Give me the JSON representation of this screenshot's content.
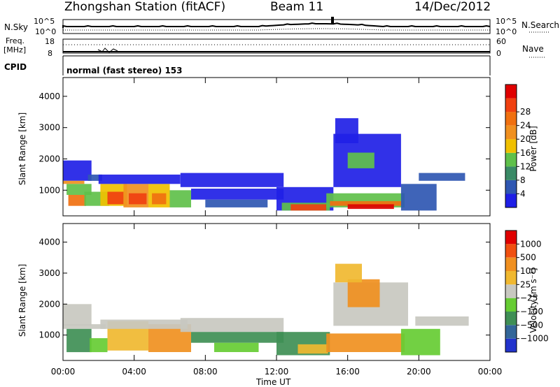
{
  "header": {
    "station": "Zhongshan Station (fitACF)",
    "beam": "Beam 11",
    "date": "14/Dec/2012"
  },
  "strips": {
    "nsky_label": "N.Sky",
    "nsearch_label": "N.Search",
    "noise_ticks_left": [
      "10^5",
      "10^0"
    ],
    "noise_ticks_right": [
      "10^5",
      "10^0"
    ],
    "freq_label": "Freq.",
    "freq_unit": "[MHz]",
    "freq_ticks": [
      "18",
      "8"
    ],
    "nave_label": "Nave",
    "nave_ticks": [
      "60",
      "0"
    ],
    "cpid_label": "CPID",
    "cpid_text": "normal (fast stereo) 153"
  },
  "colors": {
    "power": [
      "#1f1fe6",
      "#2f57b2",
      "#3a8a66",
      "#5fc04a",
      "#f0c000",
      "#f09020",
      "#f07010",
      "#f04010",
      "#e00000"
    ],
    "velocity": [
      "#2233cc",
      "#336699",
      "#3f8f55",
      "#66cc33",
      "#c8c8c0",
      "#f0b830",
      "#f09020",
      "#f05010",
      "#e00000"
    ]
  },
  "chart_data": [
    {
      "type": "heatmap",
      "panel": "power",
      "xlabel": "Time UT",
      "ylabel": "Slant Range [km]",
      "xlim": [
        0,
        24
      ],
      "ylim": [
        180,
        4600
      ],
      "xticks": [
        "00:00",
        "04:00",
        "08:00",
        "12:00",
        "16:00",
        "20:00",
        "00:00"
      ],
      "yticks": [
        1000,
        2000,
        3000,
        4000
      ],
      "colorbar_label": "Power [dB]",
      "colorbar_ticks": [
        "4",
        "8",
        "12",
        "16",
        "20",
        "24",
        "28"
      ],
      "regions": [
        {
          "t": [
            0.0,
            1.6
          ],
          "r": [
            1300,
            1950
          ],
          "level": 0
        },
        {
          "t": [
            1.4,
            2.2
          ],
          "r": [
            1300,
            1500
          ],
          "level": 1
        },
        {
          "t": [
            0.0,
            1.2
          ],
          "r": [
            1200,
            1300
          ],
          "level": 5
        },
        {
          "t": [
            0.2,
            1.6
          ],
          "r": [
            850,
            1200
          ],
          "level": 3
        },
        {
          "t": [
            0.3,
            1.3
          ],
          "r": [
            500,
            850
          ],
          "level": 6
        },
        {
          "t": [
            1.2,
            2.6
          ],
          "r": [
            500,
            950
          ],
          "level": 3
        },
        {
          "t": [
            2.1,
            3.6
          ],
          "r": [
            500,
            1200
          ],
          "level": 4
        },
        {
          "t": [
            2.5,
            3.4
          ],
          "r": [
            550,
            950
          ],
          "level": 7
        },
        {
          "t": [
            3.4,
            4.8
          ],
          "r": [
            450,
            1200
          ],
          "level": 5
        },
        {
          "t": [
            3.7,
            4.7
          ],
          "r": [
            550,
            900
          ],
          "level": 7
        },
        {
          "t": [
            4.8,
            6.0
          ],
          "r": [
            450,
            1200
          ],
          "level": 4
        },
        {
          "t": [
            5.0,
            5.8
          ],
          "r": [
            550,
            900
          ],
          "level": 6
        },
        {
          "t": [
            6.0,
            7.2
          ],
          "r": [
            450,
            1000
          ],
          "level": 3
        },
        {
          "t": [
            2.0,
            6.6
          ],
          "r": [
            1200,
            1500
          ],
          "level": 0
        },
        {
          "t": [
            6.6,
            12.4
          ],
          "r": [
            1100,
            1550
          ],
          "level": 0
        },
        {
          "t": [
            7.2,
            12.4
          ],
          "r": [
            700,
            1050
          ],
          "level": 0
        },
        {
          "t": [
            8.0,
            11.5
          ],
          "r": [
            450,
            700
          ],
          "level": 1
        },
        {
          "t": [
            12.0,
            15.2
          ],
          "r": [
            350,
            1100
          ],
          "level": 0
        },
        {
          "t": [
            12.3,
            15.0
          ],
          "r": [
            350,
            600
          ],
          "level": 3
        },
        {
          "t": [
            12.8,
            14.8
          ],
          "r": [
            350,
            550
          ],
          "level": 7
        },
        {
          "t": [
            14.8,
            19.2
          ],
          "r": [
            450,
            900
          ],
          "level": 3
        },
        {
          "t": [
            15.0,
            19.0
          ],
          "r": [
            500,
            650
          ],
          "level": 6
        },
        {
          "t": [
            16.0,
            18.6
          ],
          "r": [
            400,
            550
          ],
          "level": 8
        },
        {
          "t": [
            15.2,
            19.0
          ],
          "r": [
            1100,
            2800
          ],
          "level": 0
        },
        {
          "t": [
            15.3,
            16.6
          ],
          "r": [
            2500,
            3300
          ],
          "level": 0
        },
        {
          "t": [
            16.0,
            17.5
          ],
          "r": [
            1700,
            2200
          ],
          "level": 3
        },
        {
          "t": [
            19.0,
            21.0
          ],
          "r": [
            350,
            1200
          ],
          "level": 1
        },
        {
          "t": [
            20.0,
            22.6
          ],
          "r": [
            1300,
            1550
          ],
          "level": 1
        }
      ]
    },
    {
      "type": "heatmap",
      "panel": "velocity",
      "xlabel": "Time UT",
      "ylabel": "Slant Range [km]",
      "xlim": [
        0,
        24
      ],
      "ylim": [
        180,
        4600
      ],
      "xticks": [
        "00:00",
        "04:00",
        "08:00",
        "12:00",
        "16:00",
        "20:00",
        "00:00"
      ],
      "yticks": [
        1000,
        2000,
        3000,
        4000
      ],
      "colorbar_label": "Velocity [m s⁻¹]",
      "colorbar_ticks": [
        "1000",
        "500",
        "100",
        "25",
        "−25",
        "−100",
        "−500",
        "−1000"
      ],
      "regions": [
        {
          "t": [
            0.0,
            1.6
          ],
          "r": [
            1300,
            2000
          ],
          "level": 4
        },
        {
          "t": [
            0.0,
            2.4
          ],
          "r": [
            1200,
            1350
          ],
          "level": 4
        },
        {
          "t": [
            0.2,
            1.6
          ],
          "r": [
            450,
            1200
          ],
          "level": 2
        },
        {
          "t": [
            1.5,
            2.5
          ],
          "r": [
            450,
            900
          ],
          "level": 3
        },
        {
          "t": [
            2.5,
            4.8
          ],
          "r": [
            500,
            1450
          ],
          "level": 5
        },
        {
          "t": [
            4.8,
            7.2
          ],
          "r": [
            450,
            1350
          ],
          "level": 6
        },
        {
          "t": [
            2.1,
            7.0
          ],
          "r": [
            1200,
            1500
          ],
          "level": 4
        },
        {
          "t": [
            6.6,
            12.4
          ],
          "r": [
            1100,
            1550
          ],
          "level": 4
        },
        {
          "t": [
            7.2,
            12.4
          ],
          "r": [
            750,
            1100
          ],
          "level": 2
        },
        {
          "t": [
            8.5,
            11.0
          ],
          "r": [
            450,
            750
          ],
          "level": 3
        },
        {
          "t": [
            12.0,
            15.0
          ],
          "r": [
            350,
            1100
          ],
          "level": 2
        },
        {
          "t": [
            13.2,
            14.9
          ],
          "r": [
            400,
            700
          ],
          "level": 5
        },
        {
          "t": [
            14.8,
            19.2
          ],
          "r": [
            450,
            1050
          ],
          "level": 6
        },
        {
          "t": [
            15.2,
            19.4
          ],
          "r": [
            1300,
            2700
          ],
          "level": 4
        },
        {
          "t": [
            16.0,
            17.8
          ],
          "r": [
            1900,
            2800
          ],
          "level": 6
        },
        {
          "t": [
            15.3,
            16.8
          ],
          "r": [
            2700,
            3300
          ],
          "level": 5
        },
        {
          "t": [
            19.0,
            21.2
          ],
          "r": [
            350,
            1200
          ],
          "level": 3
        },
        {
          "t": [
            19.8,
            22.8
          ],
          "r": [
            1300,
            1600
          ],
          "level": 4
        }
      ]
    }
  ]
}
